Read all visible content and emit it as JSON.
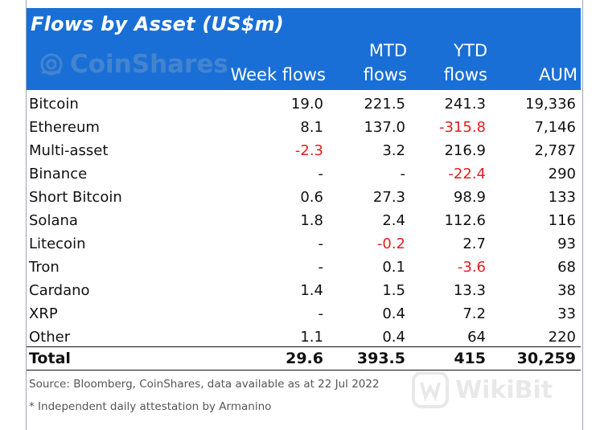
{
  "title": "Flows by Asset (US$m)",
  "logo_text": "CoinShares",
  "headers": {
    "week": [
      "Week flows"
    ],
    "mtd": [
      "MTD",
      "flows"
    ],
    "ytd": [
      "YTD",
      "flows"
    ],
    "aum": [
      "AUM"
    ]
  },
  "rows": [
    {
      "name": "Bitcoin",
      "week": "19.0",
      "mtd": "221.5",
      "ytd": "241.3",
      "aum": "19,336"
    },
    {
      "name": "Ethereum",
      "week": "8.1",
      "mtd": "137.0",
      "ytd": "-315.8",
      "aum": "7,146"
    },
    {
      "name": "Multi-asset",
      "week": "-2.3",
      "mtd": "3.2",
      "ytd": "216.9",
      "aum": "2,787"
    },
    {
      "name": "Binance",
      "week": "-",
      "mtd": "-",
      "ytd": "-22.4",
      "aum": "290"
    },
    {
      "name": "Short Bitcoin",
      "week": "0.6",
      "mtd": "27.3",
      "ytd": "98.9",
      "aum": "133"
    },
    {
      "name": "Solana",
      "week": "1.8",
      "mtd": "2.4",
      "ytd": "112.6",
      "aum": "116"
    },
    {
      "name": "Litecoin",
      "week": "-",
      "mtd": "-0.2",
      "ytd": "2.7",
      "aum": "93"
    },
    {
      "name": "Tron",
      "week": "-",
      "mtd": "0.1",
      "ytd": "-3.6",
      "aum": "68"
    },
    {
      "name": "Cardano",
      "week": "1.4",
      "mtd": "1.5",
      "ytd": "13.3",
      "aum": "38"
    },
    {
      "name": "XRP",
      "week": "-",
      "mtd": "0.4",
      "ytd": "7.2",
      "aum": "33"
    },
    {
      "name": "Other",
      "week": "1.1",
      "mtd": "0.4",
      "ytd": "64",
      "aum": "220"
    }
  ],
  "total": {
    "name": "Total",
    "week": "29.6",
    "mtd": "393.5",
    "ytd": "415",
    "aum": "30,259"
  },
  "source": "Source: Bloomberg, CoinShares, data available as at 22 Jul 2022",
  "footnote": "* Independent daily attestation by Armanino",
  "watermark": "WikiBit",
  "colors": {
    "header_bg": "#1a6fd6",
    "negative": "#e02020"
  }
}
